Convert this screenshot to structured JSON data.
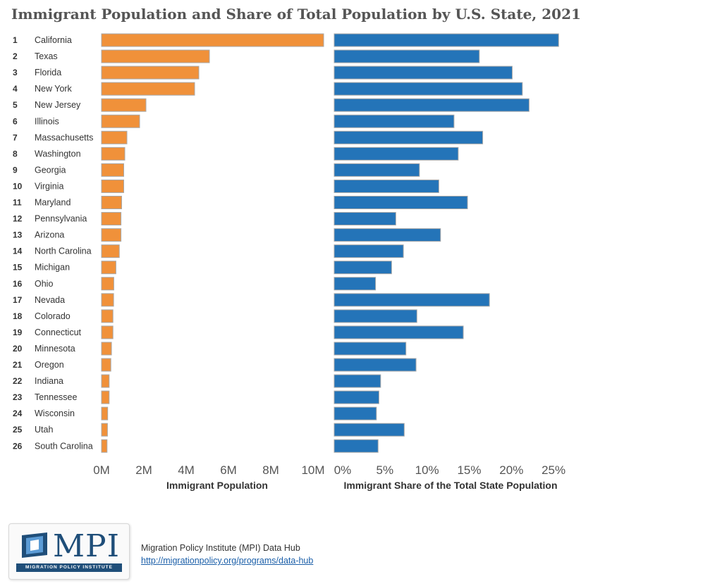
{
  "page_title": "Immigrant Population and Share of Total Population by U.S. State, 2021",
  "footer": {
    "source_label": "Migration Policy Institute (MPI) Data Hub",
    "link_text": "http://migrationpolicy.org/programs/data-hub"
  },
  "logo": {
    "letters": "MPI",
    "org_name": "MIGRATION POLICY INSTITUTE"
  },
  "colors": {
    "population_bar": "#f0913a",
    "share_bar": "#2474b8",
    "bar_outline": "#a8a8a8"
  },
  "chart_data": [
    {
      "type": "bar",
      "orientation": "horizontal",
      "xlabel": "Immigrant Population",
      "xlim": [
        0,
        10500000
      ],
      "x_ticks": [
        0,
        2000000,
        4000000,
        6000000,
        8000000,
        10000000
      ],
      "x_tick_labels": [
        "0M",
        "2M",
        "4M",
        "6M",
        "8M",
        "10M"
      ],
      "ranks": [
        "1",
        "2",
        "3",
        "4",
        "5",
        "6",
        "7",
        "8",
        "9",
        "10",
        "11",
        "12",
        "13",
        "14",
        "15",
        "16",
        "17",
        "18",
        "19",
        "20",
        "21",
        "22",
        "23",
        "24",
        "25",
        "26"
      ],
      "categories": [
        "California",
        "Texas",
        "Florida",
        "New York",
        "New Jersey",
        "Illinois",
        "Massachusetts",
        "Washington",
        "Georgia",
        "Virginia",
        "Maryland",
        "Pennsylvania",
        "Arizona",
        "North Carolina",
        "Michigan",
        "Ohio",
        "Nevada",
        "Colorado",
        "Connecticut",
        "Minnesota",
        "Oregon",
        "Indiana",
        "Tennessee",
        "Wisconsin",
        "Utah",
        "South Carolina"
      ],
      "values": [
        10500000,
        5100000,
        4600000,
        4400000,
        2100000,
        1800000,
        1200000,
        1100000,
        1050000,
        1050000,
        950000,
        920000,
        920000,
        840000,
        680000,
        580000,
        570000,
        540000,
        540000,
        470000,
        440000,
        360000,
        360000,
        290000,
        280000,
        260000
      ]
    },
    {
      "type": "bar",
      "orientation": "horizontal",
      "xlabel": "Immigrant Share of the Total State Population",
      "xlim": [
        0,
        28.5
      ],
      "x_ticks": [
        0,
        5,
        10,
        15,
        20,
        25
      ],
      "x_tick_labels": [
        "0%",
        "5%",
        "10%",
        "15%",
        "20%",
        "25%"
      ],
      "categories": [
        "California",
        "Texas",
        "Florida",
        "New York",
        "New Jersey",
        "Illinois",
        "Massachusetts",
        "Washington",
        "Georgia",
        "Virginia",
        "Maryland",
        "Pennsylvania",
        "Arizona",
        "North Carolina",
        "Michigan",
        "Ohio",
        "Nevada",
        "Colorado",
        "Connecticut",
        "Minnesota",
        "Oregon",
        "Indiana",
        "Tennessee",
        "Wisconsin",
        "Utah",
        "South Carolina"
      ],
      "values": [
        26.6,
        17.2,
        21.1,
        22.3,
        23.1,
        14.2,
        17.6,
        14.7,
        10.1,
        12.4,
        15.8,
        7.3,
        12.6,
        8.2,
        6.8,
        4.9,
        18.4,
        9.8,
        15.3,
        8.5,
        9.7,
        5.5,
        5.3,
        5.0,
        8.3,
        5.2
      ]
    }
  ]
}
